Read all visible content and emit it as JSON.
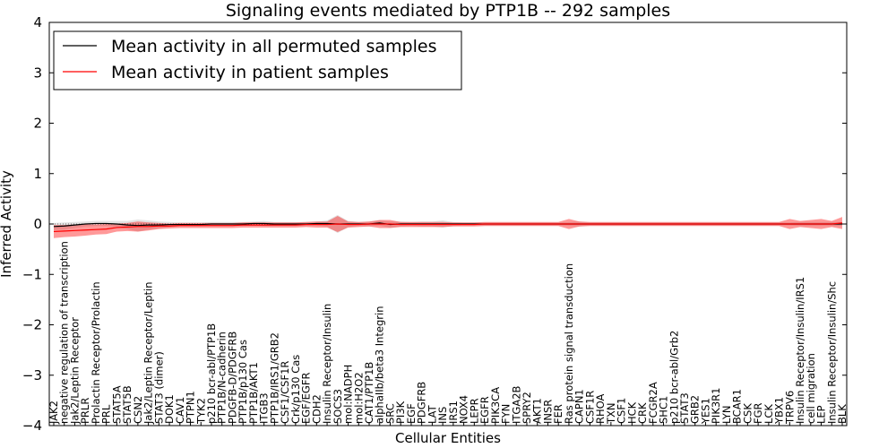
{
  "chart_data": {
    "type": "line",
    "title": "Signaling events mediated by PTP1B -- 292 samples",
    "xlabel": "Cellular Entities",
    "ylabel": "Inferred Activity",
    "ylim": [
      -4,
      4
    ],
    "yticks": [
      4,
      3,
      2,
      1,
      0,
      -1,
      -2,
      -3,
      -4
    ],
    "ytick_labels": [
      "4",
      "3",
      "2",
      "1",
      "0",
      "−1",
      "−2",
      "−3",
      "−4"
    ],
    "legend_position": "top-left",
    "categories": [
      "JAK2",
      "negative regulation of transcription",
      "Jak2/Leptin Receptor",
      "PRLR",
      "Prolactin Receptor/Prolactin",
      "PRL",
      "STAT5A",
      "STAT5B",
      "CSN2",
      "Jak2/Leptin Receptor/Leptin",
      "STAT3 (dimer)",
      "DOK1",
      "CAV1",
      "PTPN1",
      "TYK2",
      "p210 bcr-abl/PTP1B",
      "PTP1B/N-cadherin",
      "PDGFB-D/PDGFRB",
      "PTP1B/p130 Cas",
      "PTP1B/AKT1",
      "ITGB3",
      "PTP1B/IRS1/GRB2",
      "CSF1/CSF1R",
      "Crk/p130 Cas",
      "EGF/EGFR",
      "CDH2",
      "Insulin Receptor/Insulin",
      "SOCS3",
      "mol:NADPH",
      "mol:H2O2",
      "CAT1/PTP1B",
      "alphaIIb/beta3 Integrin",
      "SRC",
      "PI3K",
      "EGF",
      "PDGFRB",
      "LAT",
      "INS",
      "IRS1",
      "NOX4",
      "LEPR",
      "EGFR",
      "PIK3CA",
      "FYN",
      "ITGA2B",
      "SPRY2",
      "AKT1",
      "INSR",
      "FER",
      "Ras protein signal transduction",
      "CAPN1",
      "CSF1R",
      "RHOA",
      "TXN",
      "CSF1",
      "HCK",
      "CRK",
      "FCGR2A",
      "SHC1",
      "p210 bcr-abl/Grb2",
      "STAT3",
      "GRB2",
      "YES1",
      "PIK3R1",
      "LYN",
      "BCAR1",
      "CSK",
      "FGR",
      "LCK",
      "YBX1",
      "TRPV6",
      "Insulin Receptor/Insulin/IRS1",
      "cell migration",
      "LEP",
      "Insulin Receptor/Insulin/Shc",
      "BLK"
    ],
    "series": [
      {
        "name": "Mean activity in all permuted samples",
        "color": "#000000",
        "band_color": "#b0b0b0",
        "values": [
          -0.05,
          -0.04,
          -0.02,
          0.0,
          0.01,
          0.01,
          0.0,
          -0.02,
          -0.03,
          -0.02,
          -0.02,
          -0.01,
          -0.01,
          -0.01,
          -0.01,
          0.0,
          0.0,
          0.0,
          0.0,
          0.01,
          0.01,
          0.0,
          0.0,
          0.0,
          0.0,
          0.01,
          0.01,
          0.0,
          0.0,
          0.0,
          0.0,
          0.02,
          -0.01,
          0.0,
          0.0,
          0.0,
          0.0,
          0.0,
          0.0,
          0.0,
          0.0,
          0.0,
          0.0,
          0.0,
          0.0,
          0.0,
          0.0,
          0.0,
          0.0,
          0.0,
          0.0,
          0.0,
          0.0,
          0.0,
          0.0,
          0.0,
          0.0,
          0.0,
          0.0,
          0.0,
          0.0,
          0.0,
          0.0,
          0.0,
          0.0,
          0.0,
          0.0,
          0.0,
          0.0,
          0.0,
          0.0,
          0.0,
          0.0,
          0.0,
          0.0,
          0.0
        ],
        "spread": [
          0.07,
          0.07,
          0.06,
          0.05,
          0.05,
          0.05,
          0.06,
          0.08,
          0.12,
          0.09,
          0.07,
          0.05,
          0.04,
          0.04,
          0.04,
          0.04,
          0.04,
          0.04,
          0.04,
          0.04,
          0.05,
          0.04,
          0.04,
          0.04,
          0.04,
          0.04,
          0.06,
          0.18,
          0.06,
          0.04,
          0.05,
          0.05,
          0.06,
          0.05,
          0.04,
          0.05,
          0.05,
          0.07,
          0.04,
          0.03,
          0.03,
          0.03,
          0.03,
          0.03,
          0.03,
          0.03,
          0.03,
          0.03,
          0.03,
          0.04,
          0.05,
          0.03,
          0.03,
          0.03,
          0.03,
          0.03,
          0.03,
          0.03,
          0.03,
          0.03,
          0.03,
          0.03,
          0.03,
          0.03,
          0.03,
          0.03,
          0.03,
          0.03,
          0.03,
          0.03,
          0.03,
          0.04,
          0.04,
          0.04,
          0.04,
          0.04
        ]
      },
      {
        "name": "Mean activity in patient samples",
        "color": "#ff0000",
        "band_color": "#ff0000",
        "values": [
          -0.15,
          -0.14,
          -0.13,
          -0.12,
          -0.11,
          -0.1,
          -0.07,
          -0.06,
          -0.05,
          -0.05,
          -0.04,
          -0.04,
          -0.03,
          -0.03,
          -0.03,
          -0.03,
          -0.03,
          -0.03,
          -0.02,
          -0.02,
          -0.02,
          -0.02,
          -0.02,
          -0.02,
          -0.01,
          -0.01,
          -0.01,
          0.0,
          -0.01,
          -0.01,
          0.0,
          0.0,
          0.0,
          -0.01,
          -0.01,
          -0.01,
          -0.01,
          -0.01,
          -0.01,
          -0.01,
          -0.01,
          0.0,
          0.0,
          0.0,
          0.0,
          0.0,
          0.0,
          0.0,
          0.0,
          0.0,
          0.0,
          0.0,
          0.0,
          0.0,
          0.0,
          0.0,
          0.0,
          0.0,
          0.0,
          0.0,
          0.0,
          0.0,
          0.0,
          0.0,
          0.0,
          0.0,
          0.0,
          0.0,
          0.0,
          0.0,
          0.0,
          0.0,
          0.0,
          0.0,
          0.0,
          0.02
        ],
        "spread": [
          0.13,
          0.12,
          0.12,
          0.11,
          0.1,
          0.1,
          0.08,
          0.08,
          0.1,
          0.08,
          0.06,
          0.05,
          0.05,
          0.05,
          0.05,
          0.05,
          0.05,
          0.05,
          0.05,
          0.05,
          0.05,
          0.05,
          0.05,
          0.05,
          0.05,
          0.06,
          0.06,
          0.16,
          0.06,
          0.05,
          0.05,
          0.08,
          0.08,
          0.05,
          0.05,
          0.05,
          0.05,
          0.05,
          0.04,
          0.04,
          0.04,
          0.04,
          0.04,
          0.04,
          0.04,
          0.04,
          0.04,
          0.04,
          0.04,
          0.1,
          0.05,
          0.04,
          0.04,
          0.04,
          0.04,
          0.04,
          0.04,
          0.04,
          0.04,
          0.04,
          0.04,
          0.04,
          0.04,
          0.04,
          0.04,
          0.04,
          0.04,
          0.04,
          0.04,
          0.04,
          0.1,
          0.06,
          0.08,
          0.1,
          0.06,
          0.12
        ]
      }
    ]
  }
}
